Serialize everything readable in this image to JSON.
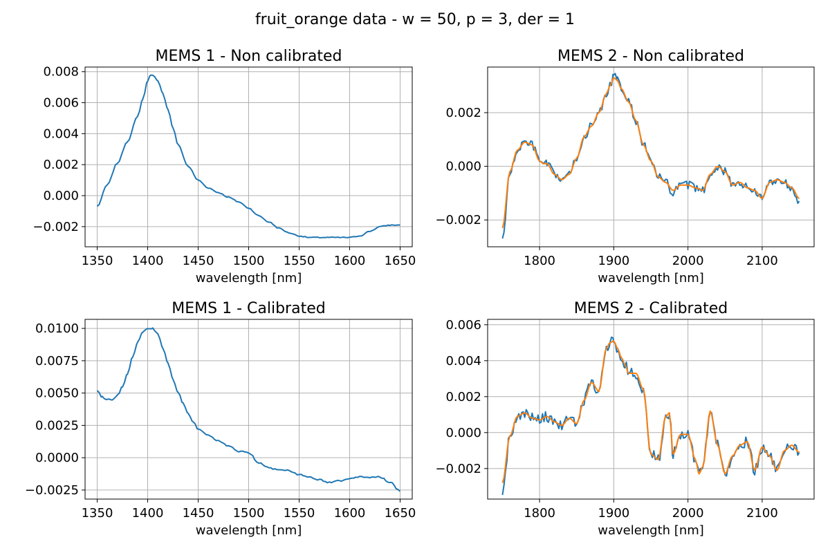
{
  "figure": {
    "suptitle": "fruit_orange data - w = 50, p = 3, der = 1"
  },
  "colors": {
    "raw": "#1f77b4",
    "smoothed": "#ff7f0e",
    "grid": "#b0b0b0",
    "axes": "#000000"
  },
  "chart_data": [
    {
      "type": "line",
      "title": "MEMS 1 - Non calibrated",
      "xlabel": "wavelength [nm]",
      "ylabel": "",
      "xlim": [
        1338,
        1662
      ],
      "ylim": [
        -0.0033,
        0.0083
      ],
      "xticks": [
        1350,
        1400,
        1450,
        1500,
        1550,
        1600,
        1650
      ],
      "xtick_labels": [
        "1350",
        "1400",
        "1450",
        "1500",
        "1550",
        "1600",
        "1650"
      ],
      "yticks": [
        -0.002,
        0.0,
        0.002,
        0.004,
        0.006,
        0.008
      ],
      "ytick_labels": [
        "−0.002",
        "0.000",
        "0.002",
        "0.004",
        "0.006",
        "0.008"
      ],
      "grid": true,
      "series": [
        {
          "color": "#1f77b4",
          "noise": 3e-05,
          "x": [
            1350,
            1360,
            1370,
            1380,
            1390,
            1395,
            1400,
            1403,
            1405,
            1410,
            1415,
            1420,
            1425,
            1430,
            1440,
            1450,
            1460,
            1470,
            1480,
            1490,
            1500,
            1510,
            1520,
            1530,
            1540,
            1550,
            1560,
            1570,
            1580,
            1590,
            1600,
            1610,
            1620,
            1630,
            1640,
            1650
          ],
          "y": [
            -0.0007,
            0.0007,
            0.0021,
            0.0035,
            0.0051,
            0.0062,
            0.0074,
            0.0078,
            0.0078,
            0.0074,
            0.0066,
            0.0056,
            0.0044,
            0.0033,
            0.0019,
            0.001,
            0.0005,
            0.0002,
            -0.0001,
            -0.0004,
            -0.0008,
            -0.0013,
            -0.0017,
            -0.0021,
            -0.0024,
            -0.0026,
            -0.0027,
            -0.0027,
            -0.0027,
            -0.0027,
            -0.0027,
            -0.0026,
            -0.0023,
            -0.002,
            -0.0019,
            -0.0019
          ]
        }
      ]
    },
    {
      "type": "line",
      "title": "MEMS 2 - Non calibrated",
      "xlabel": "wavelength [nm]",
      "ylabel": "",
      "xlim": [
        1730,
        2170
      ],
      "ylim": [
        -0.003,
        0.0037
      ],
      "xticks": [
        1800,
        1900,
        2000,
        2100
      ],
      "xtick_labels": [
        "1800",
        "1900",
        "2000",
        "2100"
      ],
      "yticks": [
        -0.002,
        0.0,
        0.002
      ],
      "ytick_labels": [
        "−0.002",
        "0.000",
        "0.002"
      ],
      "grid": true,
      "series": [
        {
          "color": "#1f77b4",
          "noise": 0.00015,
          "x": [
            1750,
            1760,
            1770,
            1780,
            1790,
            1800,
            1805,
            1810,
            1820,
            1830,
            1840,
            1850,
            1860,
            1870,
            1880,
            1890,
            1895,
            1900,
            1905,
            1910,
            1920,
            1930,
            1940,
            1950,
            1960,
            1970,
            1980,
            1990,
            2000,
            2010,
            2020,
            2030,
            2040,
            2050,
            2060,
            2070,
            2080,
            2090,
            2100,
            2110,
            2120,
            2130,
            2140,
            2150
          ],
          "y": [
            -0.0027,
            -0.0003,
            0.0006,
            0.0009,
            0.0008,
            0.0002,
            0.0001,
            0.0001,
            -0.0003,
            -0.0005,
            -0.0003,
            0.0003,
            0.0011,
            0.0015,
            0.002,
            0.0027,
            0.003,
            0.0034,
            0.0032,
            0.0029,
            0.0024,
            0.0017,
            0.0008,
            0.0002,
            -0.0004,
            -0.0006,
            -0.001,
            -0.0007,
            -0.0007,
            -0.0008,
            -0.0009,
            -0.0003,
            0.0,
            -0.0002,
            -0.0007,
            -0.0006,
            -0.0008,
            -0.0009,
            -0.0012,
            -0.0006,
            -0.0005,
            -0.0006,
            -0.0008,
            -0.0013
          ]
        },
        {
          "color": "#ff7f0e",
          "noise": 0.0,
          "x": [
            1750,
            1760,
            1770,
            1780,
            1790,
            1800,
            1805,
            1810,
            1820,
            1830,
            1840,
            1850,
            1860,
            1870,
            1880,
            1890,
            1895,
            1900,
            1905,
            1910,
            1920,
            1930,
            1940,
            1950,
            1960,
            1970,
            1980,
            1990,
            2000,
            2010,
            2020,
            2030,
            2040,
            2050,
            2060,
            2070,
            2080,
            2090,
            2100,
            2110,
            2120,
            2130,
            2140,
            2150
          ],
          "y": [
            -0.0023,
            -0.0002,
            0.0006,
            0.0009,
            0.0008,
            0.0002,
            0.0001,
            0.0001,
            -0.0003,
            -0.0005,
            -0.0003,
            0.0003,
            0.0011,
            0.0015,
            0.002,
            0.0027,
            0.003,
            0.0033,
            0.0032,
            0.0029,
            0.0024,
            0.0017,
            0.0008,
            0.0002,
            -0.0004,
            -0.0006,
            -0.0009,
            -0.0007,
            -0.0007,
            -0.0008,
            -0.0009,
            -0.0003,
            0.0,
            -0.0002,
            -0.0007,
            -0.0006,
            -0.0008,
            -0.0009,
            -0.0012,
            -0.0006,
            -0.0005,
            -0.0006,
            -0.0008,
            -0.0012
          ]
        }
      ]
    },
    {
      "type": "line",
      "title": "MEMS 1 - Calibrated",
      "xlabel": "wavelength [nm]",
      "ylabel": "",
      "xlim": [
        1338,
        1662
      ],
      "ylim": [
        -0.0032,
        0.0107
      ],
      "xticks": [
        1350,
        1400,
        1450,
        1500,
        1550,
        1600,
        1650
      ],
      "xtick_labels": [
        "1350",
        "1400",
        "1450",
        "1500",
        "1550",
        "1600",
        "1650"
      ],
      "yticks": [
        -0.0025,
        0.0,
        0.0025,
        0.005,
        0.0075,
        0.01
      ],
      "ytick_labels": [
        "−0.0025",
        "0.0000",
        "0.0025",
        "0.0050",
        "0.0075",
        "0.0100"
      ],
      "grid": true,
      "series": [
        {
          "color": "#1f77b4",
          "noise": 6e-05,
          "x": [
            1350,
            1355,
            1360,
            1365,
            1370,
            1375,
            1380,
            1385,
            1390,
            1395,
            1400,
            1405,
            1410,
            1415,
            1420,
            1425,
            1430,
            1435,
            1440,
            1445,
            1450,
            1460,
            1470,
            1480,
            1490,
            1500,
            1510,
            1520,
            1530,
            1540,
            1550,
            1560,
            1570,
            1580,
            1590,
            1600,
            1610,
            1620,
            1630,
            1640,
            1650
          ],
          "y": [
            0.0052,
            0.0047,
            0.0045,
            0.0045,
            0.0048,
            0.0055,
            0.0065,
            0.0078,
            0.0089,
            0.0097,
            0.01,
            0.01,
            0.0096,
            0.0085,
            0.0073,
            0.0061,
            0.0051,
            0.0042,
            0.0034,
            0.0028,
            0.0022,
            0.0017,
            0.0013,
            0.0009,
            0.0005,
            0.0004,
            -0.0004,
            -0.0008,
            -0.0009,
            -0.001,
            -0.0013,
            -0.0015,
            -0.0017,
            -0.0019,
            -0.0018,
            -0.0016,
            -0.0015,
            -0.0015,
            -0.0015,
            -0.0019,
            -0.0026
          ]
        }
      ]
    },
    {
      "type": "line",
      "title": "MEMS 2 - Calibrated",
      "xlabel": "wavelength [nm]",
      "ylabel": "",
      "xlim": [
        1730,
        2170
      ],
      "ylim": [
        -0.0037,
        0.0063
      ],
      "xticks": [
        1800,
        1900,
        2000,
        2100
      ],
      "xtick_labels": [
        "1800",
        "1900",
        "2000",
        "2100"
      ],
      "yticks": [
        -0.002,
        0.0,
        0.002,
        0.004,
        0.006
      ],
      "ytick_labels": [
        "−0.002",
        "0.000",
        "0.002",
        "0.004",
        "0.006"
      ],
      "grid": true,
      "series": [
        {
          "color": "#1f77b4",
          "noise": 0.0003,
          "x": [
            1750,
            1760,
            1770,
            1780,
            1790,
            1800,
            1810,
            1820,
            1830,
            1840,
            1850,
            1860,
            1870,
            1880,
            1890,
            1895,
            1900,
            1905,
            1910,
            1915,
            1920,
            1930,
            1940,
            1950,
            1960,
            1970,
            1975,
            1980,
            1990,
            2000,
            2010,
            2015,
            2020,
            2030,
            2040,
            2050,
            2060,
            2070,
            2080,
            2090,
            2100,
            2110,
            2120,
            2130,
            2140,
            2150
          ],
          "y": [
            -0.0034,
            -0.0002,
            0.0009,
            0.0011,
            0.0008,
            0.0007,
            0.0009,
            0.0006,
            0.0004,
            0.0008,
            0.0005,
            0.0018,
            0.0028,
            0.0023,
            0.0047,
            0.005,
            0.0052,
            0.0047,
            0.0042,
            0.0038,
            0.0033,
            0.0033,
            0.0024,
            -0.0012,
            -0.0015,
            0.0009,
            0.0011,
            -0.0012,
            -0.0001,
            -0.0001,
            -0.0015,
            -0.0023,
            -0.0019,
            0.0012,
            -0.0007,
            -0.0023,
            -0.0013,
            -0.0007,
            -0.0005,
            -0.0021,
            -0.0008,
            -0.0013,
            -0.0021,
            -0.001,
            -0.0007,
            -0.0011
          ]
        },
        {
          "color": "#ff7f0e",
          "noise": 0.0,
          "x": [
            1750,
            1760,
            1770,
            1780,
            1790,
            1800,
            1810,
            1820,
            1830,
            1840,
            1850,
            1860,
            1870,
            1880,
            1890,
            1895,
            1900,
            1905,
            1910,
            1915,
            1920,
            1930,
            1940,
            1950,
            1960,
            1970,
            1975,
            1980,
            1990,
            2000,
            2010,
            2015,
            2020,
            2030,
            2040,
            2050,
            2060,
            2070,
            2080,
            2090,
            2100,
            2110,
            2120,
            2130,
            2140,
            2150
          ],
          "y": [
            -0.0028,
            -0.0002,
            0.0009,
            0.0011,
            0.0008,
            0.0007,
            0.0009,
            0.0006,
            0.0004,
            0.0008,
            0.0005,
            0.0018,
            0.0028,
            0.0023,
            0.0047,
            0.005,
            0.0051,
            0.0047,
            0.0042,
            0.0038,
            0.0033,
            0.0033,
            0.0024,
            -0.0012,
            -0.0015,
            0.0009,
            0.0011,
            -0.0012,
            -0.0001,
            -0.0001,
            -0.0015,
            -0.0023,
            -0.0019,
            0.0012,
            -0.0007,
            -0.0023,
            -0.0013,
            -0.0007,
            -0.0005,
            -0.0021,
            -0.0008,
            -0.0013,
            -0.0021,
            -0.001,
            -0.0007,
            -0.0011
          ]
        }
      ]
    }
  ]
}
